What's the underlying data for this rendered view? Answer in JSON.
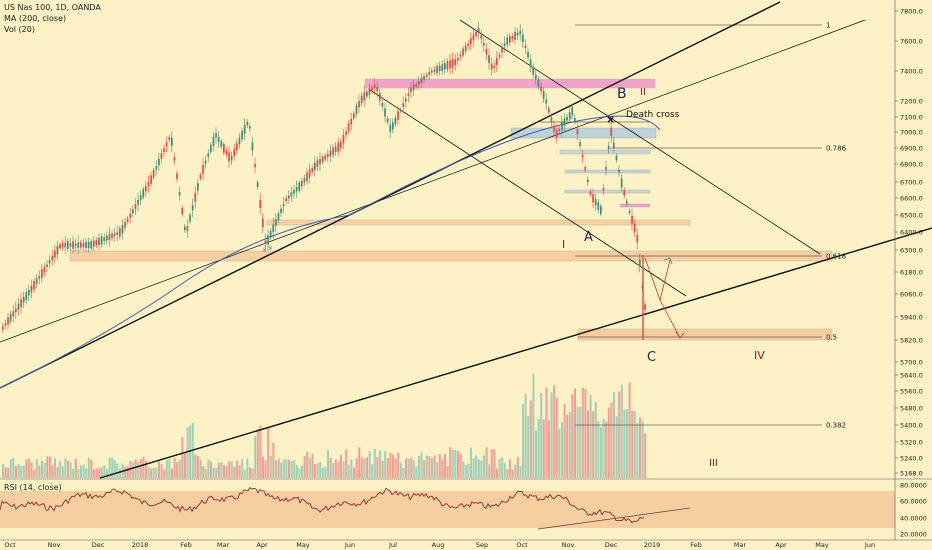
{
  "legend": {
    "symbol_line": "US Nas 100, 1D, OANDA",
    "ma_line": "MA (200, close)",
    "vol_line": "Vol (20)",
    "rsi_line": "RSI (14, close)"
  },
  "chart_data": {
    "type": "candlestick",
    "price_axis": {
      "ticks": [
        "7800.0",
        "7600.0",
        "7400.0",
        "7200.0",
        "7100.0",
        "7000.0",
        "6900.0",
        "6800.0",
        "6700.0",
        "6600.0",
        "6500.0",
        "6400.0",
        "6300.0",
        "6180.0",
        "6060.0",
        "5940.0",
        "5820.0",
        "5700.0",
        "5640.0",
        "5560.0",
        "5480.0",
        "5400.0",
        "5320.0",
        "5240.0",
        "5168.0"
      ]
    },
    "rsi_axis": {
      "ticks": [
        "80.0000",
        "60.0000",
        "40.0000",
        "20.0000"
      ],
      "band": [
        30,
        70
      ]
    },
    "time_axis": [
      "Oct",
      "Nov",
      "Dec",
      "2018",
      "Feb",
      "Mar",
      "Apr",
      "May",
      "Jun",
      "Jul",
      "Aug",
      "Sep",
      "Oct",
      "Nov",
      "Dec",
      "2019",
      "Feb",
      "Mar",
      "Apr",
      "May",
      "Jun"
    ],
    "fib_levels": [
      {
        "label": "1"
      },
      {
        "label": "0.786"
      },
      {
        "label": "0.618"
      },
      {
        "label": "0.5"
      },
      {
        "label": "0.382"
      }
    ],
    "annotations": {
      "wave_b": "B",
      "wave_ii": "II",
      "death_cross": "Death cross",
      "wave_i": "I",
      "wave_a": "A",
      "wave_c": "C",
      "wave_iv": "IV",
      "wave_iii": "III"
    },
    "colors": {
      "up": "#3f8b76",
      "down": "#e04a4a",
      "vol_up": "#9ecfb9",
      "vol_down": "#ef9f95",
      "ma": "#3a5fa8",
      "rsi": "#8b2a2a",
      "orange_zone": "#f5c99a",
      "pink_zone": "#f08acb",
      "blue_zone": "#b9cfd9",
      "wave_label": "#8b1a3a"
    }
  }
}
